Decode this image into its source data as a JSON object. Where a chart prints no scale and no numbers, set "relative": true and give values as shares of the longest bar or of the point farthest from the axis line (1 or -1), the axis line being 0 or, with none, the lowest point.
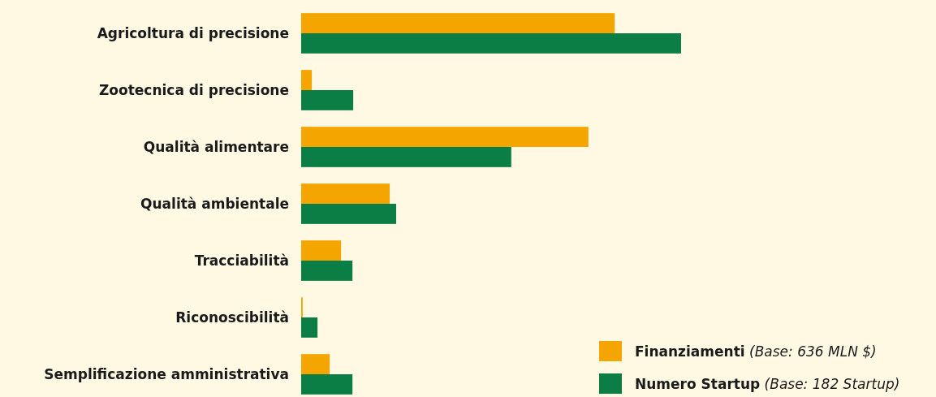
{
  "chart_data": {
    "type": "bar",
    "orientation": "horizontal",
    "relative": true,
    "legend": "bottom right",
    "categories": [
      "Agricoltura di precisione",
      "Zootecnica di precisione",
      "Qualità alimentare",
      "Qualità ambientale",
      "Tracciabilità",
      "Riconoscibilità",
      "Semplificazione amministrativa"
    ],
    "series": [
      {
        "name": "Finanziamenti (Base: 636 MLN $)",
        "color": "#f5a500",
        "values": [
          0.825,
          0.028,
          0.756,
          0.233,
          0.105,
          0.004,
          0.075
        ]
      },
      {
        "name": "Numero Startup (Base: 182 Startup)",
        "color": "#0b7e45",
        "values": [
          1,
          0.137,
          0.553,
          0.25,
          0.135,
          0.043,
          0.135
        ]
      }
    ]
  }
}
